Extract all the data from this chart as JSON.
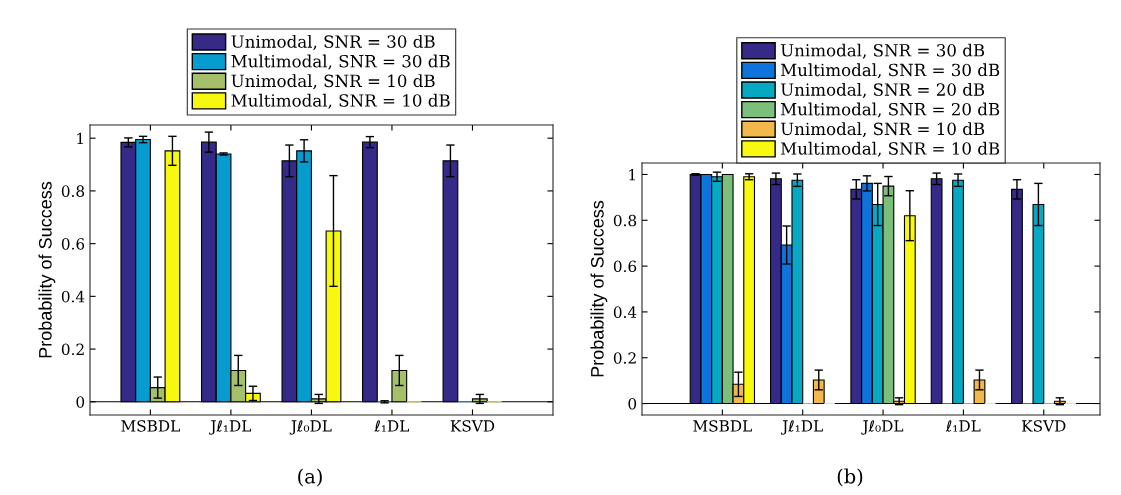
{
  "chart_data": [
    {
      "type": "bar",
      "categories": [
        "MSBDL",
        "Jℓ₁DL",
        "Jℓ₀DL",
        "ℓ₁DL",
        "KSVD"
      ],
      "ylabel": "Probability of Success",
      "ylim": [
        -0.05,
        1.05
      ],
      "yticks": [
        0,
        0.2,
        0.4,
        0.6,
        0.8,
        1
      ],
      "legend": "top",
      "annotations": [
        "(a)"
      ],
      "ref_lines": [
        {
          "axis": "y",
          "value": 0,
          "color": "#000000"
        }
      ],
      "series": [
        {
          "name": "Unimodal, SNR = 30 dB",
          "color": "#352a87",
          "values": [
            0.984,
            0.985,
            0.914,
            0.985,
            0.914
          ],
          "errors": [
            0.017,
            0.038,
            0.06,
            0.021,
            0.06
          ]
        },
        {
          "name": "Multimodal, SNR = 30 dB",
          "color": "#069ccf",
          "values": [
            0.995,
            0.94,
            0.952,
            0,
            0
          ],
          "errors": [
            0.012,
            0.004,
            0.042,
            0.004,
            null
          ]
        },
        {
          "name": "Unimodal, SNR = 10 dB",
          "color": "#a5bf6a",
          "values": [
            0.054,
            0.119,
            0.011,
            0.119,
            0.011
          ],
          "errors": [
            0.04,
            0.057,
            0.017,
            0.057,
            0.017
          ]
        },
        {
          "name": "Multimodal, SNR = 10 dB",
          "color": "#f7f70f",
          "values": [
            0.952,
            0.032,
            0.648,
            0,
            0
          ],
          "errors": [
            0.055,
            0.027,
            0.21,
            null,
            null
          ]
        }
      ]
    },
    {
      "type": "bar",
      "categories": [
        "MSBDL",
        "Jℓ₁DL",
        "Jℓ₀DL",
        "ℓ₁DL",
        "KSVD"
      ],
      "ylabel": "Probability of Success",
      "ylim": [
        -0.05,
        1.05
      ],
      "yticks": [
        0,
        0.2,
        0.4,
        0.6,
        0.8,
        1
      ],
      "legend": "top",
      "annotations": [
        "(b)"
      ],
      "ref_lines": [
        {
          "axis": "y",
          "value": 0,
          "color": "#000000"
        }
      ],
      "series": [
        {
          "name": "Unimodal, SNR = 30 dB",
          "color": "#352a87",
          "values": [
            1.0,
            0.981,
            0.935,
            0.981,
            0.935
          ],
          "errors": [
            0.003,
            0.025,
            0.042,
            0.025,
            0.042
          ]
        },
        {
          "name": "Multimodal, SNR = 30 dB",
          "color": "#0f73dc",
          "values": [
            1.0,
            0.692,
            0.961,
            0,
            0
          ],
          "errors": [
            null,
            0.083,
            0.033,
            null,
            null
          ]
        },
        {
          "name": "Unimodal, SNR = 20 dB",
          "color": "#07a8c2",
          "values": [
            0.99,
            0.975,
            0.869,
            0.975,
            0.869
          ],
          "errors": [
            0.02,
            0.027,
            0.092,
            0.027,
            0.092
          ]
        },
        {
          "name": "Multimodal, SNR = 20 dB",
          "color": "#7cbf7b",
          "values": [
            1.0,
            0,
            0.949,
            0,
            0
          ],
          "errors": [
            null,
            null,
            0.042,
            null,
            null
          ]
        },
        {
          "name": "Unimodal, SNR = 10 dB",
          "color": "#f2b84b",
          "values": [
            0.084,
            0.103,
            0.01,
            0.103,
            0.01
          ],
          "errors": [
            0.053,
            0.043,
            0.015,
            0.043,
            0.015
          ]
        },
        {
          "name": "Multimodal, SNR = 10 dB",
          "color": "#f9f90f",
          "values": [
            0.99,
            0,
            0.82,
            0,
            0
          ],
          "errors": [
            0.013,
            null,
            0.109,
            null,
            null
          ]
        }
      ]
    }
  ]
}
